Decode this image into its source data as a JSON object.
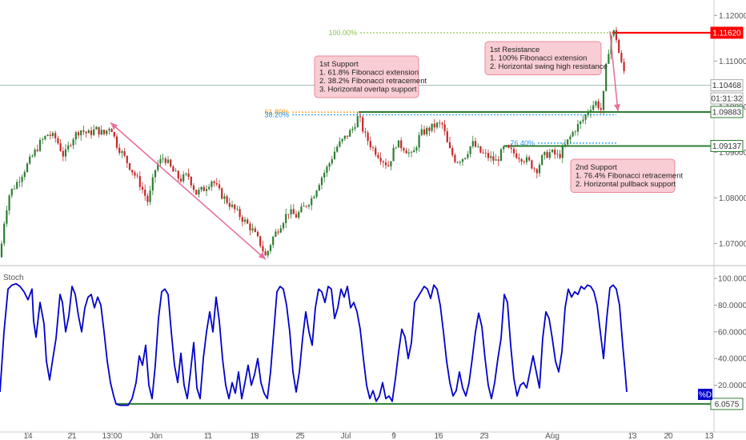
{
  "chart_data": [
    {
      "type": "line",
      "name": "price-panel",
      "description_series": "EUR-style FX candlestick price path (approximate close values, daily-ish samples)",
      "x": [
        "14",
        "21",
        "13:00",
        "Jun",
        "11",
        "18",
        "25",
        "Jul",
        "9",
        "16",
        "23",
        "Aug",
        "13",
        "20"
      ],
      "ylim": [
        1.0655,
        1.1225
      ],
      "y_ticks": [
        "1.12000",
        "1.11000",
        "1.10000",
        "1.09000",
        "1.08000",
        "1.07000"
      ],
      "close_path": [
        [
          0,
          1.067
        ],
        [
          6,
          1.076
        ],
        [
          12,
          1.081
        ],
        [
          20,
          1.083
        ],
        [
          30,
          1.086
        ],
        [
          40,
          1.089
        ],
        [
          50,
          1.092
        ],
        [
          60,
          1.094
        ],
        [
          70,
          1.093
        ],
        [
          80,
          1.089
        ],
        [
          90,
          1.093
        ],
        [
          100,
          1.095
        ],
        [
          110,
          1.094
        ],
        [
          120,
          1.095
        ],
        [
          130,
          1.094
        ],
        [
          138,
          1.096
        ],
        [
          145,
          1.092
        ],
        [
          155,
          1.089
        ],
        [
          165,
          1.086
        ],
        [
          175,
          1.083
        ],
        [
          185,
          1.079
        ],
        [
          195,
          1.087
        ],
        [
          205,
          1.089
        ],
        [
          215,
          1.086
        ],
        [
          225,
          1.084
        ],
        [
          235,
          1.085
        ],
        [
          245,
          1.081
        ],
        [
          255,
          1.082
        ],
        [
          265,
          1.084
        ],
        [
          275,
          1.081
        ],
        [
          285,
          1.079
        ],
        [
          295,
          1.077
        ],
        [
          305,
          1.075
        ],
        [
          315,
          1.073
        ],
        [
          325,
          1.07
        ],
        [
          332,
          1.067
        ],
        [
          340,
          1.071
        ],
        [
          350,
          1.074
        ],
        [
          360,
          1.077
        ],
        [
          370,
          1.076
        ],
        [
          380,
          1.078
        ],
        [
          390,
          1.08
        ],
        [
          400,
          1.084
        ],
        [
          410,
          1.087
        ],
        [
          420,
          1.091
        ],
        [
          430,
          1.093
        ],
        [
          440,
          1.095
        ],
        [
          448,
          1.098
        ],
        [
          455,
          1.094
        ],
        [
          465,
          1.091
        ],
        [
          475,
          1.089
        ],
        [
          485,
          1.087
        ],
        [
          495,
          1.092
        ],
        [
          505,
          1.091
        ],
        [
          515,
          1.089
        ],
        [
          525,
          1.094
        ],
        [
          535,
          1.095
        ],
        [
          545,
          1.096
        ],
        [
          553,
          1.096
        ],
        [
          560,
          1.091
        ],
        [
          570,
          1.088
        ],
        [
          580,
          1.089
        ],
        [
          590,
          1.092
        ],
        [
          600,
          1.09
        ],
        [
          610,
          1.089
        ],
        [
          620,
          1.088
        ],
        [
          630,
          1.091
        ],
        [
          640,
          1.09
        ],
        [
          650,
          1.089
        ],
        [
          660,
          1.088
        ],
        [
          670,
          1.086
        ],
        [
          678,
          1.089
        ],
        [
          688,
          1.09
        ],
        [
          698,
          1.089
        ],
        [
          708,
          1.092
        ],
        [
          718,
          1.095
        ],
        [
          728,
          1.097
        ],
        [
          738,
          1.1
        ],
        [
          745,
          1.101
        ],
        [
          752,
          1.099
        ],
        [
          758,
          1.11
        ],
        [
          765,
          1.117
        ],
        [
          770,
          1.115
        ],
        [
          775,
          1.11
        ],
        [
          782,
          1.1065
        ]
      ],
      "annotations": {
        "support1": [
          "1st Support",
          "1. 61.8% Fibonacci extension",
          "2. 38.2% Fibonacci retracement",
          "3. Horizontal overlap support"
        ],
        "resistance1": [
          "1st Resistance",
          "1. 100% Fibonacci extension",
          "2. Horizontal swing high resistance"
        ],
        "support2": [
          "2nd Support",
          "1. 76.4% Fibonacci retracement",
          "2. Horizontal pullback support"
        ]
      },
      "fib_levels": {
        "f100": {
          "label": "100.00%",
          "value": 1.1162,
          "color": "#8bc34a"
        },
        "f618": {
          "label": "61.80%",
          "value": 1.0988,
          "color": "#ff9800"
        },
        "f382": {
          "label": "38.20%",
          "value": 1.0982,
          "color": "#2196f3"
        },
        "f764": {
          "label": "76.40%",
          "value": 1.092,
          "color": "#2196f3"
        }
      },
      "price_tags": [
        {
          "label": "1.11620",
          "value": 1.1162,
          "bg": "#ff0000",
          "fg": "#ffffff"
        },
        {
          "label": "1.10468",
          "value": 1.10468,
          "bg": "#ffffff",
          "fg": "#333333",
          "border": "#aaaaaa"
        },
        {
          "label": "01:31:32",
          "value": 1.1018,
          "bg": "#ffffff",
          "fg": "#333333",
          "border": "#aaaaaa"
        },
        {
          "label": "1.09883",
          "value": 1.09883,
          "bg": "#ffffff",
          "fg": "#333333",
          "border": "#2e7d32"
        },
        {
          "label": "1.09137",
          "value": 1.09137,
          "bg": "#ffffff",
          "fg": "#333333",
          "border": "#2e7d32"
        }
      ],
      "colors": {
        "up": "#2e7d32",
        "down": "#c62828",
        "resistance": "#ff0000",
        "support": "#2e7d32",
        "arrow": "#e57399",
        "box_bg": "#f8cdd3",
        "box_border": "#e88a9a"
      }
    },
    {
      "type": "line",
      "name": "stochastic-panel",
      "label": "Stoch",
      "series_label": "%D",
      "ylim": [
        0,
        100
      ],
      "y_ticks": [
        "100.0000",
        "80.0000",
        "60.0000",
        "40.0000",
        "20.0000"
      ],
      "level_tag": "6.0575",
      "level_value": 6.0575,
      "color": "#0000cc",
      "values": [
        [
          0,
          15
        ],
        [
          5,
          60
        ],
        [
          10,
          92
        ],
        [
          15,
          95
        ],
        [
          20,
          96
        ],
        [
          25,
          94
        ],
        [
          30,
          90
        ],
        [
          35,
          84
        ],
        [
          40,
          92
        ],
        [
          42,
          68
        ],
        [
          45,
          56
        ],
        [
          50,
          82
        ],
        [
          55,
          66
        ],
        [
          58,
          38
        ],
        [
          62,
          24
        ],
        [
          66,
          40
        ],
        [
          70,
          55
        ],
        [
          75,
          88
        ],
        [
          78,
          82
        ],
        [
          82,
          60
        ],
        [
          86,
          72
        ],
        [
          90,
          94
        ],
        [
          94,
          88
        ],
        [
          98,
          72
        ],
        [
          102,
          60
        ],
        [
          106,
          78
        ],
        [
          110,
          86
        ],
        [
          114,
          88
        ],
        [
          118,
          78
        ],
        [
          122,
          86
        ],
        [
          126,
          80
        ],
        [
          130,
          60
        ],
        [
          134,
          38
        ],
        [
          138,
          22
        ],
        [
          142,
          12
        ],
        [
          145,
          6
        ],
        [
          150,
          5
        ],
        [
          155,
          5
        ],
        [
          160,
          5
        ],
        [
          165,
          10
        ],
        [
          170,
          22
        ],
        [
          174,
          42
        ],
        [
          178,
          35
        ],
        [
          182,
          50
        ],
        [
          186,
          20
        ],
        [
          190,
          10
        ],
        [
          194,
          35
        ],
        [
          198,
          70
        ],
        [
          202,
          90
        ],
        [
          206,
          92
        ],
        [
          210,
          88
        ],
        [
          214,
          60
        ],
        [
          218,
          35
        ],
        [
          222,
          22
        ],
        [
          226,
          44
        ],
        [
          230,
          20
        ],
        [
          234,
          10
        ],
        [
          238,
          30
        ],
        [
          242,
          52
        ],
        [
          246,
          18
        ],
        [
          250,
          10
        ],
        [
          254,
          40
        ],
        [
          258,
          60
        ],
        [
          262,
          75
        ],
        [
          266,
          60
        ],
        [
          270,
          86
        ],
        [
          274,
          68
        ],
        [
          278,
          40
        ],
        [
          282,
          20
        ],
        [
          286,
          10
        ],
        [
          290,
          22
        ],
        [
          294,
          14
        ],
        [
          298,
          30
        ],
        [
          302,
          10
        ],
        [
          306,
          22
        ],
        [
          310,
          35
        ],
        [
          314,
          20
        ],
        [
          318,
          28
        ],
        [
          322,
          40
        ],
        [
          326,
          22
        ],
        [
          330,
          14
        ],
        [
          334,
          10
        ],
        [
          338,
          30
        ],
        [
          342,
          60
        ],
        [
          346,
          90
        ],
        [
          350,
          94
        ],
        [
          354,
          92
        ],
        [
          358,
          80
        ],
        [
          362,
          60
        ],
        [
          366,
          30
        ],
        [
          370,
          15
        ],
        [
          374,
          30
        ],
        [
          378,
          55
        ],
        [
          382,
          75
        ],
        [
          386,
          60
        ],
        [
          390,
          50
        ],
        [
          394,
          78
        ],
        [
          398,
          92
        ],
        [
          402,
          90
        ],
        [
          406,
          82
        ],
        [
          410,
          94
        ],
        [
          414,
          92
        ],
        [
          418,
          70
        ],
        [
          422,
          78
        ],
        [
          426,
          92
        ],
        [
          430,
          86
        ],
        [
          434,
          94
        ],
        [
          438,
          78
        ],
        [
          442,
          82
        ],
        [
          446,
          75
        ],
        [
          450,
          62
        ],
        [
          454,
          40
        ],
        [
          458,
          20
        ],
        [
          462,
          10
        ],
        [
          466,
          16
        ],
        [
          470,
          8
        ],
        [
          474,
          12
        ],
        [
          478,
          22
        ],
        [
          482,
          10
        ],
        [
          486,
          12
        ],
        [
          490,
          8
        ],
        [
          494,
          25
        ],
        [
          498,
          45
        ],
        [
          502,
          62
        ],
        [
          506,
          56
        ],
        [
          510,
          40
        ],
        [
          514,
          52
        ],
        [
          518,
          82
        ],
        [
          522,
          86
        ],
        [
          526,
          90
        ],
        [
          530,
          94
        ],
        [
          534,
          92
        ],
        [
          538,
          85
        ],
        [
          542,
          95
        ],
        [
          546,
          92
        ],
        [
          550,
          80
        ],
        [
          554,
          60
        ],
        [
          558,
          38
        ],
        [
          562,
          22
        ],
        [
          566,
          12
        ],
        [
          570,
          16
        ],
        [
          574,
          30
        ],
        [
          578,
          18
        ],
        [
          582,
          12
        ],
        [
          586,
          22
        ],
        [
          590,
          40
        ],
        [
          594,
          60
        ],
        [
          598,
          74
        ],
        [
          602,
          64
        ],
        [
          606,
          40
        ],
        [
          610,
          20
        ],
        [
          614,
          10
        ],
        [
          618,
          22
        ],
        [
          622,
          40
        ],
        [
          626,
          55
        ],
        [
          630,
          88
        ],
        [
          634,
          82
        ],
        [
          638,
          50
        ],
        [
          642,
          25
        ],
        [
          646,
          12
        ],
        [
          650,
          20
        ],
        [
          654,
          22
        ],
        [
          658,
          18
        ],
        [
          662,
          30
        ],
        [
          666,
          42
        ],
        [
          670,
          30
        ],
        [
          674,
          18
        ],
        [
          678,
          55
        ],
        [
          682,
          75
        ],
        [
          686,
          70
        ],
        [
          690,
          55
        ],
        [
          694,
          38
        ],
        [
          698,
          30
        ],
        [
          702,
          45
        ],
        [
          706,
          78
        ],
        [
          710,
          92
        ],
        [
          714,
          86
        ],
        [
          718,
          90
        ],
        [
          722,
          88
        ],
        [
          726,
          94
        ],
        [
          730,
          92
        ],
        [
          734,
          95
        ],
        [
          738,
          94
        ],
        [
          742,
          90
        ],
        [
          746,
          80
        ],
        [
          750,
          60
        ],
        [
          754,
          40
        ],
        [
          758,
          70
        ],
        [
          762,
          93
        ],
        [
          766,
          95
        ],
        [
          770,
          92
        ],
        [
          774,
          80
        ],
        [
          778,
          50
        ],
        [
          781,
          30
        ],
        [
          783,
          15
        ]
      ]
    }
  ]
}
